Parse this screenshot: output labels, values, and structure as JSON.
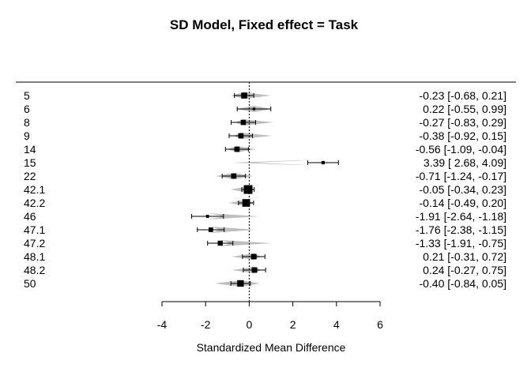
{
  "chart_data": {
    "type": "forest",
    "title": "SD Model, Fixed effect = Task",
    "xlabel": "Standardized Mean Difference",
    "xlim": [
      -4,
      6
    ],
    "xticks": [
      "-4",
      "-2",
      "0",
      "2",
      "4",
      "6"
    ],
    "xtick_values": [
      -4,
      -2,
      0,
      2,
      4,
      6
    ],
    "reference_line": 0,
    "colors": {
      "marker": "#000000",
      "prediction": "#bebebe"
    },
    "studies": [
      {
        "label": "5",
        "est": -0.23,
        "lo": -0.68,
        "hi": 0.21,
        "ci_text": "-0.23 [-0.68,  0.21]",
        "weight": 0.62,
        "pred": [
          -0.85,
          1.0
        ]
      },
      {
        "label": "6",
        "est": 0.22,
        "lo": -0.55,
        "hi": 0.99,
        "ci_text": "0.22 [-0.55,  0.99]",
        "weight": 0.15,
        "pred": [
          -0.6,
          1.0
        ]
      },
      {
        "label": "8",
        "est": -0.27,
        "lo": -0.83,
        "hi": 0.29,
        "ci_text": "-0.27 [-0.83,  0.29]",
        "weight": 0.5,
        "pred": [
          -0.65,
          1.1
        ]
      },
      {
        "label": "9",
        "est": -0.38,
        "lo": -0.92,
        "hi": 0.15,
        "ci_text": "-0.38 [-0.92,  0.15]",
        "weight": 0.52,
        "pred": [
          -0.7,
          1.05
        ]
      },
      {
        "label": "14",
        "est": -0.56,
        "lo": -1.09,
        "hi": -0.04,
        "ci_text": "-0.56 [-1.09, -0.04]",
        "weight": 0.52,
        "pred": [
          -1.0,
          0.3
        ]
      },
      {
        "label": "15",
        "est": 3.39,
        "lo": 2.68,
        "hi": 4.09,
        "ci_text": "3.39 [ 2.68,  4.09]",
        "weight": 0.25,
        "pred": [
          -0.8,
          0.25
        ]
      },
      {
        "label": "22",
        "est": -0.71,
        "lo": -1.24,
        "hi": -0.17,
        "ci_text": "-0.71 [-1.24, -0.17]",
        "weight": 0.52,
        "pred": [
          -1.55,
          0.2
        ]
      },
      {
        "label": "42.1",
        "est": -0.05,
        "lo": -0.34,
        "hi": 0.23,
        "ci_text": "-0.05 [-0.34,  0.23]",
        "weight": 1.0,
        "pred": [
          -0.85,
          0.25
        ]
      },
      {
        "label": "42.2",
        "est": -0.14,
        "lo": -0.49,
        "hi": 0.2,
        "ci_text": "-0.14 [-0.49,  0.20]",
        "weight": 0.85,
        "pred": [
          -0.95,
          0.25
        ]
      },
      {
        "label": "46",
        "est": -1.91,
        "lo": -2.64,
        "hi": -1.18,
        "ci_text": "-1.91 [-2.64, -1.18]",
        "weight": 0.2,
        "pred": [
          -1.15,
          0.45
        ]
      },
      {
        "label": "47.1",
        "est": -1.76,
        "lo": -2.38,
        "hi": -1.15,
        "ci_text": "-1.76 [-2.38, -1.15]",
        "weight": 0.42,
        "pred": [
          -1.35,
          0.3
        ]
      },
      {
        "label": "47.2",
        "est": -1.33,
        "lo": -1.91,
        "hi": -0.75,
        "ci_text": "-1.33 [-1.91, -0.75]",
        "weight": 0.48,
        "pred": [
          -0.85,
          1.05
        ]
      },
      {
        "label": "48.1",
        "est": 0.21,
        "lo": -0.31,
        "hi": 0.72,
        "ci_text": "0.21 [-0.31,  0.72]",
        "weight": 0.55,
        "pred": [
          -0.8,
          0.55
        ]
      },
      {
        "label": "48.2",
        "est": 0.24,
        "lo": -0.27,
        "hi": 0.75,
        "ci_text": "0.24 [-0.27,  0.75]",
        "weight": 0.55,
        "pred": [
          -0.8,
          0.55
        ]
      },
      {
        "label": "50",
        "est": -0.4,
        "lo": -0.84,
        "hi": 0.05,
        "ci_text": "-0.40 [-0.84,  0.05]",
        "weight": 0.7,
        "pred": [
          -1.6,
          0.5
        ]
      }
    ]
  }
}
